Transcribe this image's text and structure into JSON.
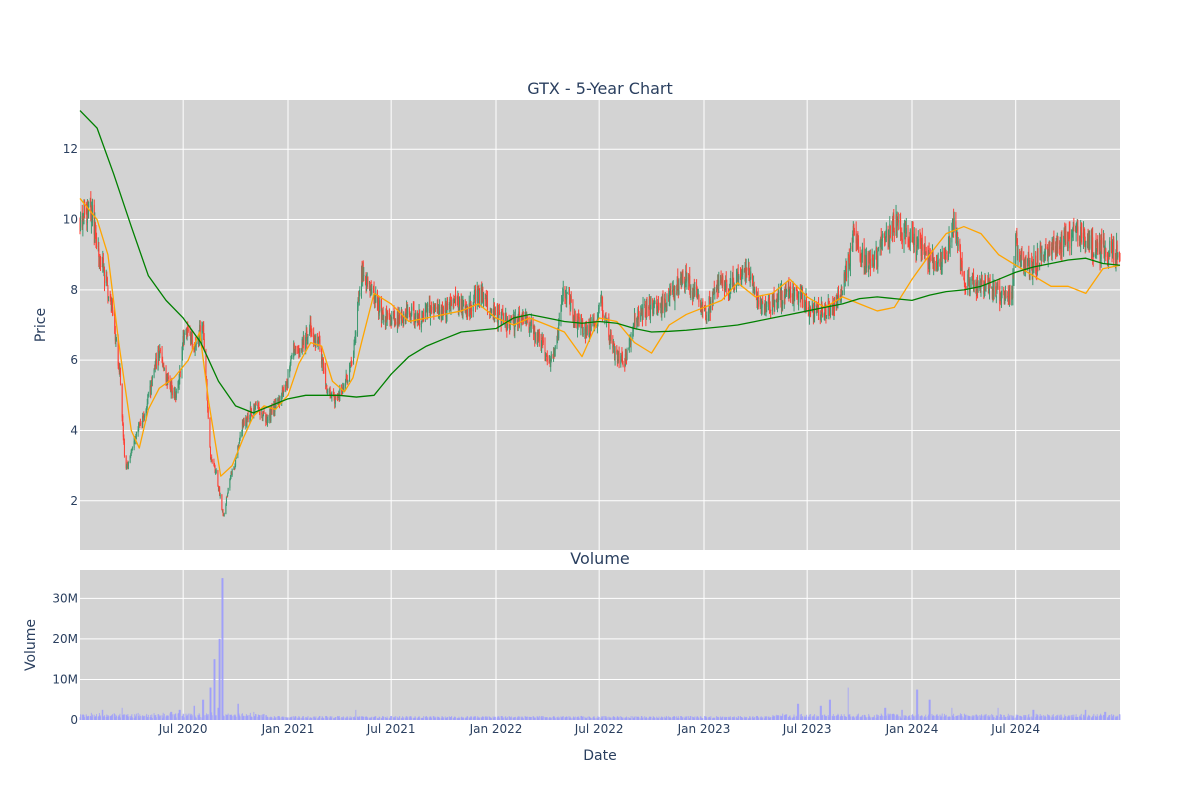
{
  "chart_data": [
    {
      "type": "candlestick",
      "title": "GTX - 5-Year Chart",
      "ylabel": "Price",
      "ylim": [
        0.6,
        13.4
      ],
      "xlim": [
        "2020-01-02",
        "2024-12-31"
      ],
      "yticks": [
        2,
        4,
        6,
        8,
        10,
        12
      ],
      "grid": true,
      "price_anchors": {
        "x": [
          "2020-01-02",
          "2020-01-20",
          "2020-02-10",
          "2020-03-01",
          "2020-03-12",
          "2020-03-22",
          "2020-04-05",
          "2020-04-20",
          "2020-05-05",
          "2020-05-20",
          "2020-06-05",
          "2020-06-20",
          "2020-07-05",
          "2020-07-20",
          "2020-08-05",
          "2020-08-18",
          "2020-08-28",
          "2020-09-10",
          "2020-09-20",
          "2020-10-01",
          "2020-10-12",
          "2020-10-25",
          "2020-11-10",
          "2020-11-25",
          "2020-12-10",
          "2020-12-28",
          "2021-01-10",
          "2021-01-25",
          "2021-02-10",
          "2021-02-25",
          "2021-03-10",
          "2021-03-25",
          "2021-04-10",
          "2021-04-25",
          "2021-05-10",
          "2021-05-25",
          "2021-06-05",
          "2021-06-15",
          "2021-06-30",
          "2021-07-15",
          "2021-08-01",
          "2021-08-20",
          "2021-09-10",
          "2021-10-01",
          "2021-10-20",
          "2021-11-10",
          "2021-12-01",
          "2021-12-20",
          "2022-01-10",
          "2022-01-25",
          "2022-02-10",
          "2022-03-01",
          "2022-03-20",
          "2022-04-10",
          "2022-05-01",
          "2022-05-20",
          "2022-06-05",
          "2022-06-20",
          "2022-07-05",
          "2022-07-25",
          "2022-08-15",
          "2022-09-01",
          "2022-09-20",
          "2022-10-10",
          "2022-10-20",
          "2022-11-05",
          "2022-11-25",
          "2022-12-15",
          "2023-01-05",
          "2023-01-25",
          "2023-02-15",
          "2023-03-01",
          "2023-03-20",
          "2023-04-10",
          "2023-05-01",
          "2023-05-20",
          "2023-06-10",
          "2023-07-01",
          "2023-07-20",
          "2023-08-10",
          "2023-09-01",
          "2023-09-20",
          "2023-10-10",
          "2023-10-25",
          "2023-11-10",
          "2023-11-25",
          "2023-12-05",
          "2023-12-15",
          "2024-01-01",
          "2024-01-15",
          "2024-01-30",
          "2024-02-15",
          "2024-03-01",
          "2024-03-15",
          "2024-04-01",
          "2024-04-15",
          "2024-05-01",
          "2024-05-20",
          "2024-06-10",
          "2024-06-25",
          "2024-07-01",
          "2024-07-10",
          "2024-07-25",
          "2024-08-15",
          "2024-09-05",
          "2024-09-25",
          "2024-10-15",
          "2024-11-01",
          "2024-11-15",
          "2024-12-01",
          "2024-12-15",
          "2024-12-31"
        ],
        "close": [
          9.9,
          10.3,
          8.7,
          7.2,
          5.6,
          2.8,
          3.7,
          4.3,
          5.2,
          6.3,
          5.3,
          5.0,
          7.0,
          6.4,
          7.0,
          3.2,
          2.8,
          1.5,
          2.6,
          3.1,
          4.1,
          4.5,
          4.7,
          4.2,
          4.7,
          5.2,
          6.3,
          6.4,
          6.9,
          6.5,
          5.2,
          4.9,
          5.2,
          6.2,
          8.5,
          8.0,
          7.8,
          7.2,
          7.3,
          7.1,
          7.3,
          7.2,
          7.5,
          7.4,
          7.6,
          7.4,
          7.9,
          7.5,
          7.2,
          7.0,
          7.2,
          7.0,
          6.5,
          5.9,
          8.0,
          7.2,
          6.8,
          7.0,
          7.6,
          6.3,
          5.9,
          7.2,
          7.4,
          7.7,
          7.6,
          7.8,
          8.4,
          7.9,
          7.3,
          8.2,
          8.0,
          8.3,
          8.4,
          7.6,
          7.6,
          7.8,
          7.9,
          7.6,
          7.3,
          7.5,
          8.0,
          9.5,
          8.9,
          8.8,
          9.3,
          9.7,
          10.0,
          9.6,
          9.5,
          9.2,
          8.9,
          8.7,
          8.9,
          9.8,
          8.3,
          8.1,
          8.2,
          8.0,
          7.8,
          7.9,
          9.4,
          9.0,
          8.6,
          9.0,
          9.2,
          9.4,
          9.6,
          9.5,
          9.2,
          9.1,
          9.2,
          9.0
        ]
      },
      "series": [
        {
          "name": "",
          "color": "#ffa500",
          "x": [
            "2020-01-02",
            "2020-02-01",
            "2020-02-20",
            "2020-03-10",
            "2020-04-01",
            "2020-04-15",
            "2020-05-01",
            "2020-05-20",
            "2020-06-15",
            "2020-07-10",
            "2020-07-30",
            "2020-08-15",
            "2020-09-05",
            "2020-09-25",
            "2020-10-15",
            "2020-11-01",
            "2020-11-20",
            "2020-12-10",
            "2021-01-01",
            "2021-01-20",
            "2021-02-10",
            "2021-03-01",
            "2021-03-20",
            "2021-04-10",
            "2021-04-25",
            "2021-05-10",
            "2021-06-01",
            "2021-07-01",
            "2021-08-01",
            "2021-09-01",
            "2021-10-01",
            "2021-11-01",
            "2021-12-01",
            "2022-01-01",
            "2022-02-01",
            "2022-03-01",
            "2022-04-01",
            "2022-05-01",
            "2022-06-01",
            "2022-07-01",
            "2022-08-01",
            "2022-09-01",
            "2022-10-01",
            "2022-11-01",
            "2022-12-01",
            "2023-01-01",
            "2023-02-01",
            "2023-03-01",
            "2023-04-01",
            "2023-05-01",
            "2023-06-01",
            "2023-07-01",
            "2023-08-01",
            "2023-09-01",
            "2023-10-01",
            "2023-11-01",
            "2023-12-01",
            "2024-01-01",
            "2024-02-01",
            "2024-03-01",
            "2024-04-01",
            "2024-05-01",
            "2024-06-01",
            "2024-07-01",
            "2024-08-01",
            "2024-09-01",
            "2024-10-01",
            "2024-11-01",
            "2024-12-01",
            "2024-12-31"
          ],
          "y": [
            10.6,
            10.0,
            9.0,
            6.5,
            4.0,
            3.5,
            4.6,
            5.2,
            5.5,
            6.0,
            6.8,
            4.8,
            2.7,
            3.0,
            3.8,
            4.4,
            4.7,
            4.6,
            5.0,
            5.9,
            6.5,
            6.4,
            5.4,
            5.1,
            5.5,
            6.5,
            7.9,
            7.6,
            7.1,
            7.2,
            7.3,
            7.4,
            7.6,
            7.2,
            7.0,
            7.2,
            7.0,
            6.8,
            6.1,
            7.2,
            7.1,
            6.5,
            6.2,
            7.0,
            7.3,
            7.5,
            7.7,
            8.2,
            7.8,
            7.9,
            8.3,
            7.8,
            7.5,
            7.8,
            7.6,
            7.4,
            7.5,
            8.3,
            9.0,
            9.6,
            9.8,
            9.6,
            9.0,
            8.7,
            8.4,
            8.1,
            8.1,
            7.9,
            8.6,
            8.7
          ]
        },
        {
          "name": "",
          "color": "#008000",
          "x": [
            "2020-01-02",
            "2020-02-01",
            "2020-03-01",
            "2020-04-01",
            "2020-05-01",
            "2020-06-01",
            "2020-07-01",
            "2020-08-01",
            "2020-09-01",
            "2020-10-01",
            "2020-11-01",
            "2020-12-01",
            "2021-01-01",
            "2021-02-01",
            "2021-03-01",
            "2021-04-01",
            "2021-05-01",
            "2021-06-01",
            "2021-07-01",
            "2021-08-01",
            "2021-09-01",
            "2021-10-01",
            "2021-11-01",
            "2021-12-01",
            "2022-01-01",
            "2022-02-01",
            "2022-03-01",
            "2022-04-01",
            "2022-05-01",
            "2022-06-01",
            "2022-07-01",
            "2022-08-01",
            "2022-09-01",
            "2022-10-01",
            "2022-11-01",
            "2022-12-01",
            "2023-01-01",
            "2023-02-01",
            "2023-03-01",
            "2023-04-01",
            "2023-05-01",
            "2023-06-01",
            "2023-07-01",
            "2023-08-01",
            "2023-09-01",
            "2023-10-01",
            "2023-11-01",
            "2023-12-01",
            "2024-01-01",
            "2024-02-01",
            "2024-03-01",
            "2024-04-01",
            "2024-05-01",
            "2024-06-01",
            "2024-07-01",
            "2024-08-01",
            "2024-09-01",
            "2024-10-01",
            "2024-11-01",
            "2024-12-01",
            "2024-12-31"
          ],
          "y": [
            13.1,
            12.6,
            11.3,
            9.8,
            8.4,
            7.7,
            7.2,
            6.5,
            5.4,
            4.7,
            4.5,
            4.7,
            4.9,
            5.0,
            5.0,
            5.0,
            4.95,
            5.0,
            5.6,
            6.1,
            6.4,
            6.6,
            6.8,
            6.85,
            6.9,
            7.2,
            7.3,
            7.2,
            7.1,
            7.05,
            7.1,
            7.05,
            6.9,
            6.8,
            6.82,
            6.85,
            6.9,
            6.95,
            7.0,
            7.1,
            7.2,
            7.3,
            7.4,
            7.5,
            7.6,
            7.75,
            7.8,
            7.75,
            7.7,
            7.85,
            7.95,
            8.0,
            8.1,
            8.3,
            8.5,
            8.65,
            8.75,
            8.85,
            8.9,
            8.75,
            8.7
          ]
        }
      ]
    },
    {
      "type": "bar",
      "title": "Volume",
      "xlabel": "Date",
      "ylabel": "Volume",
      "ylim": [
        0,
        37000000
      ],
      "yticks": [
        0,
        10000000,
        20000000,
        30000000
      ],
      "ytick_labels": [
        "0",
        "10M",
        "20M",
        "30M"
      ],
      "xticks": [
        "2020-07-01",
        "2021-01-01",
        "2021-07-01",
        "2022-01-01",
        "2022-07-01",
        "2023-01-01",
        "2023-07-01",
        "2024-01-01",
        "2024-07-01"
      ],
      "xtick_labels": [
        "Jul 2020",
        "Jan 2021",
        "Jul 2021",
        "Jan 2022",
        "Jul 2022",
        "Jan 2023",
        "Jul 2023",
        "Jan 2024",
        "Jul 2024"
      ],
      "color": "#9999ff",
      "spikes": {
        "x": [
          "2020-02-10",
          "2020-03-15",
          "2020-06-10",
          "2020-06-25",
          "2020-07-20",
          "2020-08-05",
          "2020-08-18",
          "2020-08-25",
          "2020-09-01",
          "2020-09-03",
          "2020-09-08",
          "2020-10-05",
          "2020-11-01",
          "2021-05-01",
          "2023-06-15",
          "2023-07-25",
          "2023-08-10",
          "2023-09-10",
          "2023-11-15",
          "2023-12-15",
          "2024-01-10",
          "2024-02-01",
          "2024-03-10",
          "2024-06-01",
          "2024-08-01",
          "2024-11-01",
          "2024-12-05"
        ],
        "y": [
          2500000,
          3000000,
          2000000,
          2500000,
          3500000,
          5000000,
          8000000,
          15000000,
          3000000,
          20000000,
          35000000,
          4000000,
          2000000,
          2500000,
          4000000,
          3500000,
          5000000,
          8000000,
          3000000,
          2500000,
          7500000,
          5000000,
          3000000,
          3000000,
          2500000,
          2500000,
          2000000
        ]
      }
    }
  ]
}
